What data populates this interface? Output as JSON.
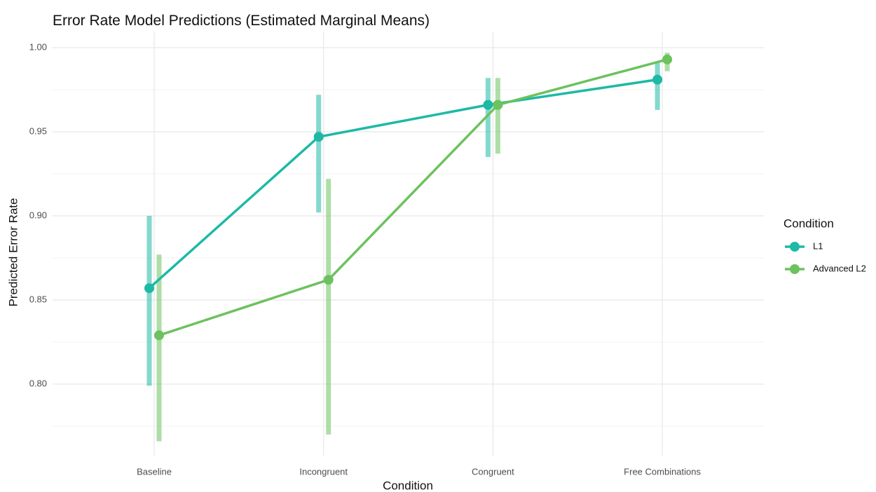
{
  "chart_data": {
    "type": "line",
    "title": "Error Rate Model Predictions (Estimated Marginal Means)",
    "x_label": "Condition",
    "y_label": "Predicted Error Rate",
    "categories": [
      "Baseline",
      "Incongruent",
      "Congruent",
      "Free Combinations"
    ],
    "series": [
      {
        "name": "L1",
        "color": "#1db9a5",
        "values": [
          0.857,
          0.947,
          0.966,
          0.981
        ],
        "lower": [
          0.799,
          0.902,
          0.935,
          0.963
        ],
        "upper": [
          0.9,
          0.972,
          0.982,
          0.991
        ]
      },
      {
        "name": "Advanced L2",
        "color": "#6cc25e",
        "values": [
          0.829,
          0.862,
          0.966,
          0.993
        ],
        "lower": [
          0.766,
          0.77,
          0.937,
          0.986
        ],
        "upper": [
          0.877,
          0.922,
          0.982,
          0.997
        ]
      }
    ],
    "ylim": [
      0.7575,
      1.0096
    ],
    "yticks": [
      {
        "value": 0.8,
        "label": "0.80"
      },
      {
        "value": 0.85,
        "label": "0.85"
      },
      {
        "value": 0.9,
        "label": "0.90"
      },
      {
        "value": 0.95,
        "label": "0.95"
      },
      {
        "value": 1.0,
        "label": "1.00"
      }
    ],
    "grid": true,
    "legend_title": "Condition",
    "legend_position": "right"
  }
}
